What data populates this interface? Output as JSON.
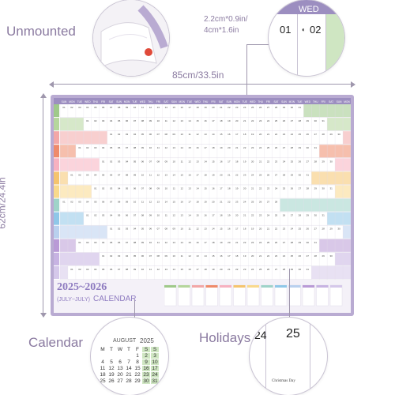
{
  "labels": {
    "unmounted": "Unmounted",
    "width_dim": "85cm/33.5in",
    "height_dim": "62cm/24.4in",
    "cell_size": "2.2cm*0.9in/\n4cm*1.6in",
    "calendar": "Calendar",
    "holidays": "Holidays"
  },
  "zoom_cell": {
    "day_name": "WED",
    "day_a": "01",
    "day_b": "02"
  },
  "zoom_holiday": {
    "day_a": "24",
    "day_b": "25",
    "holiday_name": "Christmas Day"
  },
  "zoom_calendar": {
    "month": "AUGUST",
    "year": "2025",
    "weekdays": [
      "M",
      "T",
      "W",
      "T",
      "F",
      "S",
      "S"
    ],
    "rows": [
      [
        "",
        "",
        "",
        "",
        "1",
        "2",
        "3"
      ],
      [
        "4",
        "5",
        "6",
        "7",
        "8",
        "9",
        "10"
      ],
      [
        "11",
        "12",
        "13",
        "14",
        "15",
        "16",
        "17"
      ],
      [
        "18",
        "19",
        "20",
        "21",
        "22",
        "23",
        "24"
      ],
      [
        "25",
        "26",
        "27",
        "28",
        "29",
        "30",
        "31"
      ]
    ]
  },
  "poster": {
    "title": "2025~2026",
    "subtitle": "(JULY~JULY)",
    "subtitle_word": "CALENDAR",
    "header_days": [
      "SUN",
      "MON",
      "TUE",
      "WED",
      "THU",
      "FRI",
      "SAT",
      "SUN",
      "MON",
      "TUE",
      "WED",
      "THU",
      "FRI",
      "SAT",
      "SUN",
      "MON",
      "TUE",
      "WED",
      "THU",
      "FRI",
      "SAT",
      "SUN",
      "MON",
      "TUE",
      "WED",
      "THU",
      "FRI",
      "SAT",
      "SUN",
      "MON",
      "TUE",
      "WED",
      "THU",
      "FRI",
      "SAT",
      "SUN",
      "MON"
    ],
    "month_colors": [
      "#9fc98a",
      "#b5d69c",
      "#f2a7a7",
      "#ef8a6a",
      "#f7b1c0",
      "#f5c46e",
      "#f9d98c",
      "#9fd3c9",
      "#8fc7e8",
      "#b9d0ee",
      "#b99ad6",
      "#c7b3e2",
      "#d5c8ea"
    ]
  },
  "colors": {
    "accent": "#8a7aa0",
    "frame": "#b9abd2"
  }
}
